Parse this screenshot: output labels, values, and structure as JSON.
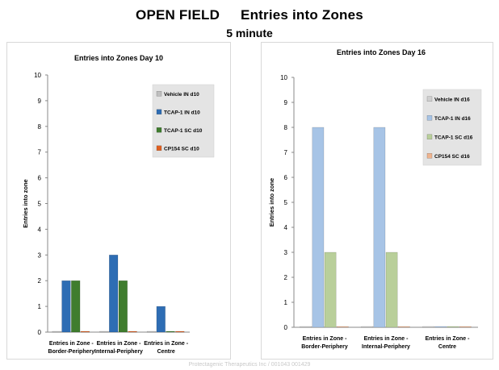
{
  "page": {
    "title_left": "OPEN FIELD",
    "title_right": "Entries into Zones",
    "subtitle": "5 minute",
    "footer": "Protectagenic Therapeutics Inc / 001043 001429"
  },
  "chart_data": [
    {
      "type": "bar",
      "title": "Entries into Zones  Day 10",
      "ylabel": "Entries into zone",
      "xlabel": "",
      "ylim": [
        0,
        10
      ],
      "yticks": [
        0,
        1,
        2,
        3,
        4,
        5,
        6,
        7,
        8,
        9,
        10
      ],
      "grid": false,
      "legend_position": "top-right",
      "categories": [
        [
          "Entries in Zone -",
          "Border-Periphery"
        ],
        [
          "Entries in Zone -",
          "Internal-Periphery"
        ],
        [
          "Entries in Zone -",
          "Centre"
        ]
      ],
      "series": [
        {
          "name": "Vehicle IN d10",
          "color": "#bfbfbf",
          "values": [
            0,
            0,
            0
          ]
        },
        {
          "name": "TCAP-1 IN d10",
          "color": "#2e6db4",
          "values": [
            2,
            3,
            1
          ]
        },
        {
          "name": "TCAP-1 SC d10",
          "color": "#3f7d2e",
          "values": [
            2,
            2,
            0
          ]
        },
        {
          "name": "CP154 SC d10",
          "color": "#e06020",
          "values": [
            0,
            0,
            0
          ]
        }
      ]
    },
    {
      "type": "bar",
      "title": "Entries into Zones   Day 16",
      "ylabel": "Entries into zone",
      "xlabel": "",
      "ylim": [
        0,
        10
      ],
      "yticks": [
        0,
        1,
        2,
        3,
        4,
        5,
        6,
        7,
        8,
        9,
        10
      ],
      "grid": false,
      "legend_position": "top-right",
      "categories": [
        [
          "Entries in Zone -",
          "Border-Periphery"
        ],
        [
          "Entries in Zone -",
          "Internal-Periphery"
        ],
        [
          "Entries in Zone -",
          "Centre"
        ]
      ],
      "series": [
        {
          "name": "Vehicle IN d16",
          "color": "#cfcfcf",
          "values": [
            0,
            0,
            0
          ]
        },
        {
          "name": "TCAP-1 IN d16",
          "color": "#a7c4e6",
          "values": [
            8,
            8,
            0
          ]
        },
        {
          "name": "TCAP-1 SC d16",
          "color": "#b9cf9a",
          "values": [
            3,
            3,
            0
          ]
        },
        {
          "name": "CP154 SC d16",
          "color": "#efb48f",
          "values": [
            0,
            0,
            0
          ]
        }
      ]
    }
  ]
}
